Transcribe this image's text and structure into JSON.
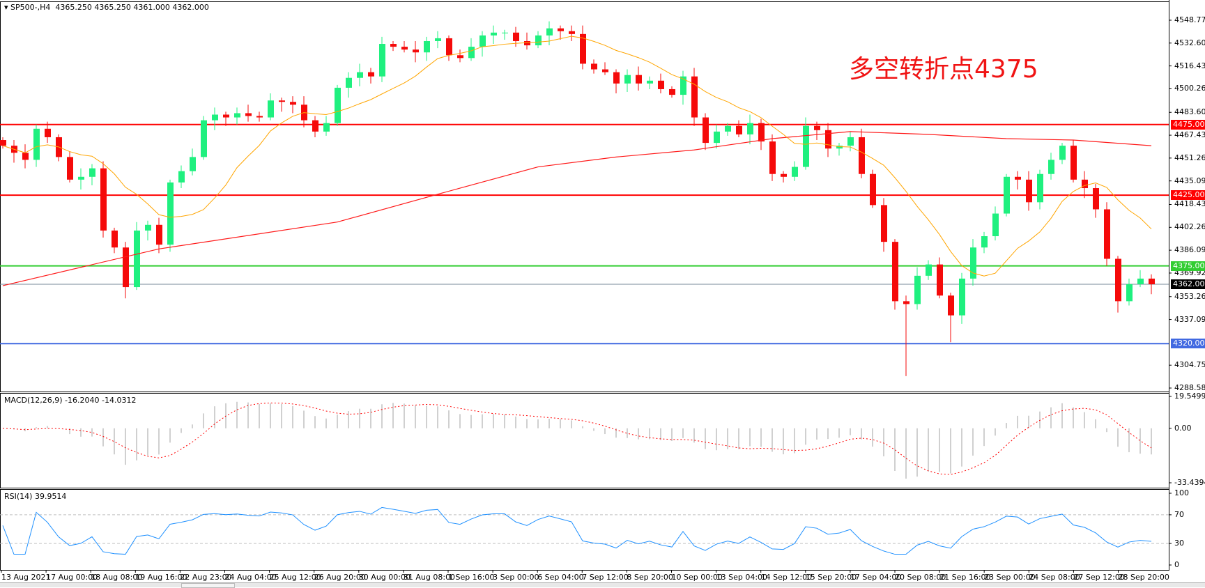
{
  "header": {
    "symbol": "SP500-,H4",
    "ohlc": "4365.250 4365.250 4361.000 4362.000"
  },
  "annotation": "多空转折点4375",
  "price_axis": [
    "4548.770",
    "4532.600",
    "4516.430",
    "4500.260",
    "4483.600",
    "4467.430",
    "4451.260",
    "4435.090",
    "4418.430",
    "4402.260",
    "4386.090",
    "4369.920",
    "4353.260",
    "4337.090",
    "4304.750",
    "4288.580"
  ],
  "levels": [
    {
      "value": 4475,
      "label": "4475.000",
      "color": "#ff0000"
    },
    {
      "value": 4425,
      "label": "4425.000",
      "color": "#ff0000"
    },
    {
      "value": 4375,
      "label": "4375.000",
      "color": "#32cd32"
    },
    {
      "value": 4362,
      "label": "4362.000",
      "color": "#000000",
      "line_color": "#778899"
    },
    {
      "value": 4320,
      "label": "4320.000",
      "color": "#4169e1"
    }
  ],
  "macd": {
    "label": "MACD(12,26,9) -16.2040 -14.0312",
    "axis": [
      "19.5499",
      "0.00",
      "-33.4394"
    ],
    "max": 19.5499,
    "min": -33.4394
  },
  "rsi": {
    "label": "RSI(14) 39.9514",
    "axis": [
      "100",
      "70",
      "30",
      "0"
    ],
    "levels": [
      70,
      30
    ]
  },
  "time_axis": [
    "13 Aug 2021",
    "17 Aug 00:00",
    "18 Aug 08:00",
    "19 Aug 16:00",
    "22 Aug 23:00",
    "24 Aug 04:00",
    "25 Aug 12:00",
    "26 Aug 20:00",
    "30 Aug 00:00",
    "31 Aug 08:00",
    "1 Sep 16:00",
    "3 Sep 00:00",
    "6 Sep 04:00",
    "7 Sep 12:00",
    "8 Sep 20:00",
    "10 Sep 00:00",
    "13 Sep 04:00",
    "14 Sep 12:00",
    "15 Sep 20:00",
    "17 Sep 04:00",
    "20 Sep 08:00",
    "21 Sep 16:00",
    "23 Sep 00:00",
    "24 Sep 08:00",
    "27 Sep 12:00",
    "28 Sep 20:00"
  ],
  "colors": {
    "up": "#1ff07f",
    "down": "#f50a0a",
    "ma_fast": "#ffa500",
    "ma_slow": "#ff1a1a",
    "macd_hist": "#c0c0c0",
    "macd_signal": "#ff0000",
    "rsi": "#1e90ff"
  },
  "chart_data": {
    "type": "candlestick",
    "ylim": [
      4288.58,
      4548.77
    ],
    "closes": [
      4460,
      4455,
      4450,
      4472,
      4466,
      4452,
      4436,
      4438,
      4444,
      4400,
      4388,
      4360,
      4400,
      4404,
      4390,
      4434,
      4442,
      4452,
      4478,
      4482,
      4480,
      4483,
      4481,
      4480,
      4492,
      4491,
      4489,
      4478,
      4470,
      4476,
      4501,
      4508,
      4512,
      4509,
      4532,
      4530,
      4528,
      4526,
      4534,
      4536,
      4524,
      4522,
      4530,
      4538,
      4540,
      4540,
      4534,
      4531,
      4538,
      4543,
      4541,
      4539,
      4518,
      4514,
      4512,
      4504,
      4510,
      4504,
      4506,
      4500,
      4496,
      4509,
      4480,
      4462,
      4470,
      4474,
      4468,
      4476,
      4463,
      4440,
      4438,
      4445,
      4474,
      4471,
      4458,
      4460,
      4466,
      4440,
      4418,
      4392,
      4350,
      4348,
      4368,
      4376,
      4354,
      4340,
      4366,
      4388,
      4396,
      4412,
      4438,
      4436,
      4420,
      4440,
      4450,
      4460,
      4436,
      4430,
      4415,
      4380,
      4350,
      4362,
      4366,
      4362
    ],
    "notable_lows": {
      "11": 4352,
      "81": 4297,
      "85": 4321,
      "100": 4342
    },
    "ma_slow": [
      [
        0,
        4361
      ],
      [
        14,
        4387
      ],
      [
        30,
        4406
      ],
      [
        41,
        4430
      ],
      [
        48,
        4445
      ],
      [
        55,
        4452
      ],
      [
        62,
        4457
      ],
      [
        69,
        4465
      ],
      [
        76,
        4470
      ],
      [
        83,
        4468
      ],
      [
        90,
        4465
      ],
      [
        96,
        4464
      ],
      [
        103,
        4460
      ]
    ]
  }
}
